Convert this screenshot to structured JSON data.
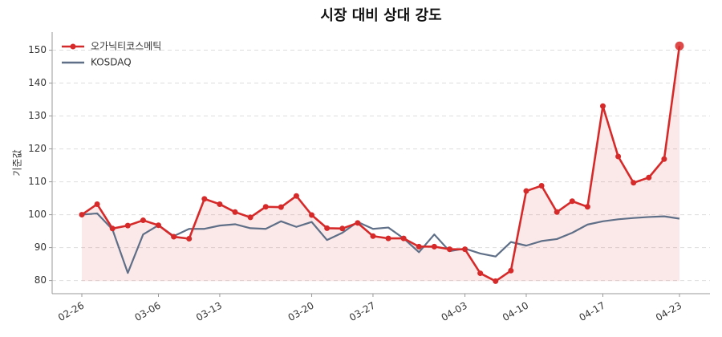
{
  "chart_data": {
    "type": "line",
    "title": "시장 대비 상대 강도",
    "ylabel": "기준값",
    "categories": [
      "02-26",
      null,
      null,
      null,
      null,
      "03-06",
      null,
      null,
      null,
      "03-13",
      null,
      null,
      null,
      null,
      null,
      "03-20",
      null,
      null,
      null,
      "03-27",
      null,
      null,
      null,
      null,
      null,
      "04-03",
      null,
      null,
      null,
      "04-10",
      null,
      null,
      null,
      null,
      "04-17",
      null,
      null,
      null,
      null,
      "04-23"
    ],
    "series": [
      {
        "name": "오가닉티코스메틱",
        "color": "#d62a2a",
        "values": [
          100,
          103.2,
          95.8,
          96.7,
          98.3,
          96.8,
          93.3,
          92.7,
          104.8,
          103.2,
          100.8,
          99.2,
          102.4,
          102.3,
          105.7,
          99.9,
          95.9,
          95.8,
          97.5,
          93.5,
          92.8,
          92.8,
          90.3,
          90.3,
          89.5,
          89.5,
          82.2,
          79.8,
          83.0,
          107.2,
          108.8,
          100.8,
          104.1,
          102.4,
          133.0,
          117.7,
          109.7,
          111.3,
          116.9,
          151.3
        ]
      },
      {
        "name": "KOSDAQ",
        "color": "#5f6f87",
        "values": [
          100,
          100.4,
          95.5,
          82.3,
          94.0,
          96.8,
          93.5,
          95.7,
          95.7,
          96.7,
          97.1,
          95.9,
          95.7,
          98.0,
          96.3,
          97.8,
          92.3,
          94.5,
          97.8,
          95.7,
          96.1,
          92.8,
          88.6,
          94.0,
          88.9,
          89.7,
          88.2,
          87.3,
          91.7,
          90.6,
          92.0,
          92.6,
          94.5,
          97.0,
          98.0,
          98.6,
          99.0,
          99.3,
          99.5,
          98.8
        ]
      }
    ],
    "ylim": [
      76,
      155.5
    ],
    "yticks": [
      80,
      90,
      100,
      110,
      120,
      130,
      140,
      150
    ],
    "grid": true,
    "legend": "upper-left",
    "fill_first_series": true
  }
}
